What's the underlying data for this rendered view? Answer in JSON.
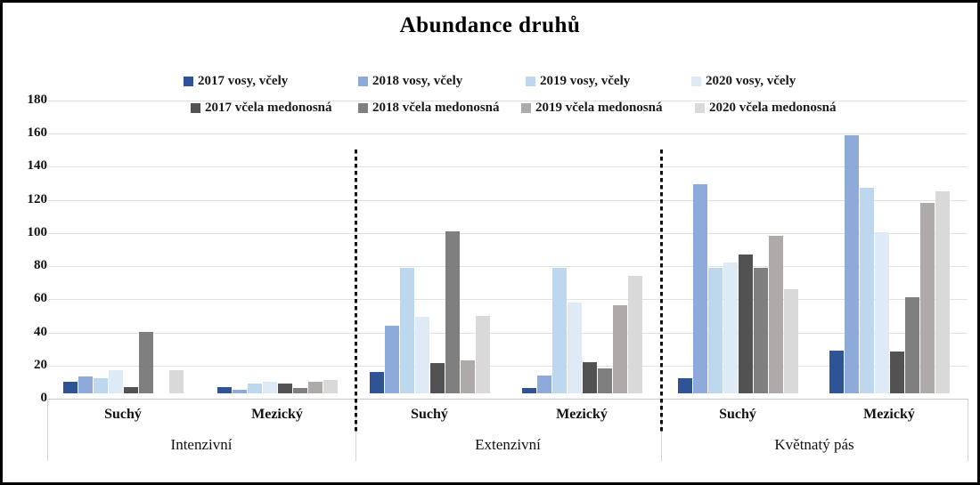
{
  "title": "Abundance druhů",
  "chart_data": {
    "type": "bar",
    "title": "Abundance druhů",
    "xlabel": "",
    "ylabel": "",
    "grid": true,
    "legend_position": "top",
    "y_axis": {
      "min": 0,
      "max": 180,
      "step": 20,
      "ticks": [
        "0",
        "20",
        "40",
        "60",
        "80",
        "100",
        "120",
        "140",
        "160",
        "180"
      ]
    },
    "series": [
      {
        "name": "2017 vosy, včely",
        "color": "#2F5496"
      },
      {
        "name": "2018 vosy, včely",
        "color": "#8EAADB"
      },
      {
        "name": "2019 vosy, včely",
        "color": "#BDD7EE"
      },
      {
        "name": "2020 vosy, včely",
        "color": "#DEEAF6"
      },
      {
        "name": "2017 včela medonosná",
        "color": "#525252"
      },
      {
        "name": "2018 včela medonosná",
        "color": "#7F7F7F"
      },
      {
        "name": "2019 včela medonosná",
        "color": "#AEAAAA"
      },
      {
        "name": "2020 včela medonosná",
        "color": "#D9D9D9"
      }
    ],
    "group_labels": [
      "Intenzivní",
      "Extenzivní",
      "Květnatý pás"
    ],
    "clusters": [
      {
        "group": "Intenzivní",
        "category": "Suchý",
        "values": [
          7,
          10,
          9,
          14,
          4,
          37,
          0,
          14
        ]
      },
      {
        "group": "Intenzivní",
        "category": "Mezický",
        "values": [
          4,
          2,
          6,
          7,
          6,
          3,
          7,
          8
        ]
      },
      {
        "group": "Extenzivní",
        "category": "Suchý",
        "values": [
          13,
          41,
          76,
          46,
          18,
          98,
          20,
          47
        ]
      },
      {
        "group": "Extenzivní",
        "category": "Mezický",
        "values": [
          3,
          11,
          76,
          55,
          19,
          15,
          53,
          71
        ]
      },
      {
        "group": "Květnatý pás",
        "category": "Suchý",
        "values": [
          9,
          126,
          76,
          79,
          84,
          76,
          95,
          63
        ]
      },
      {
        "group": "Květnatý pás",
        "category": "Mezický",
        "values": [
          26,
          156,
          124,
          97,
          25,
          58,
          115,
          122
        ]
      }
    ]
  }
}
